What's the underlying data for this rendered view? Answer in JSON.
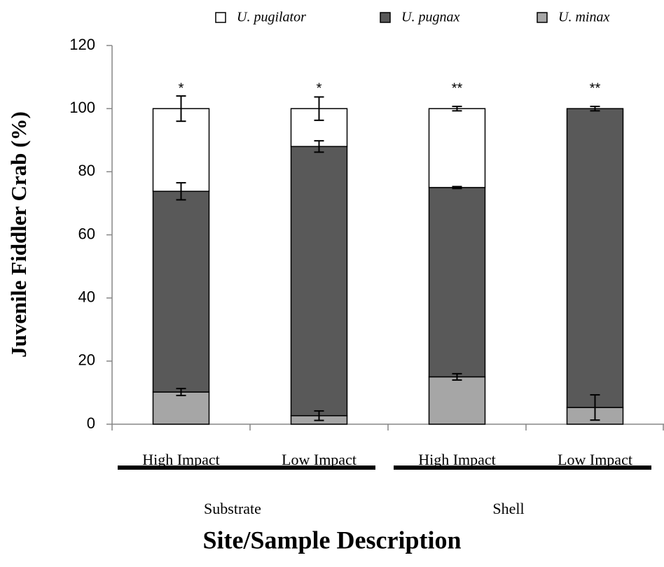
{
  "chart_data": {
    "type": "stacked_bar",
    "ylabel": "Juvenile Fiddler Crab (%)",
    "xlabel": "Site/Sample Description",
    "categories": [
      "High Impact",
      "Low Impact",
      "High Impact",
      "Low Impact"
    ],
    "groups": [
      "Substrate",
      "Shell"
    ],
    "annotations": [
      "*",
      "*",
      "**",
      "**"
    ],
    "series": [
      {
        "name": "U. pugilator",
        "color": "#ffffff",
        "values": [
          26.2,
          12,
          25,
          null
        ],
        "errors": [
          4,
          3.7,
          0.7,
          null
        ]
      },
      {
        "name": "U. pugnax",
        "color": "#595959",
        "values": [
          63.6,
          85.3,
          60,
          94.7
        ],
        "errors": [
          2.7,
          1.8,
          0.3,
          0.7
        ]
      },
      {
        "name": "U. minax",
        "color": "#a6a6a6",
        "values": [
          10.2,
          2.7,
          15,
          5.3
        ],
        "errors": [
          1.1,
          1.5,
          1,
          4
        ]
      }
    ],
    "ylim": [
      0,
      120
    ],
    "yticks": [
      0,
      20,
      40,
      60,
      80,
      100,
      120
    ]
  }
}
